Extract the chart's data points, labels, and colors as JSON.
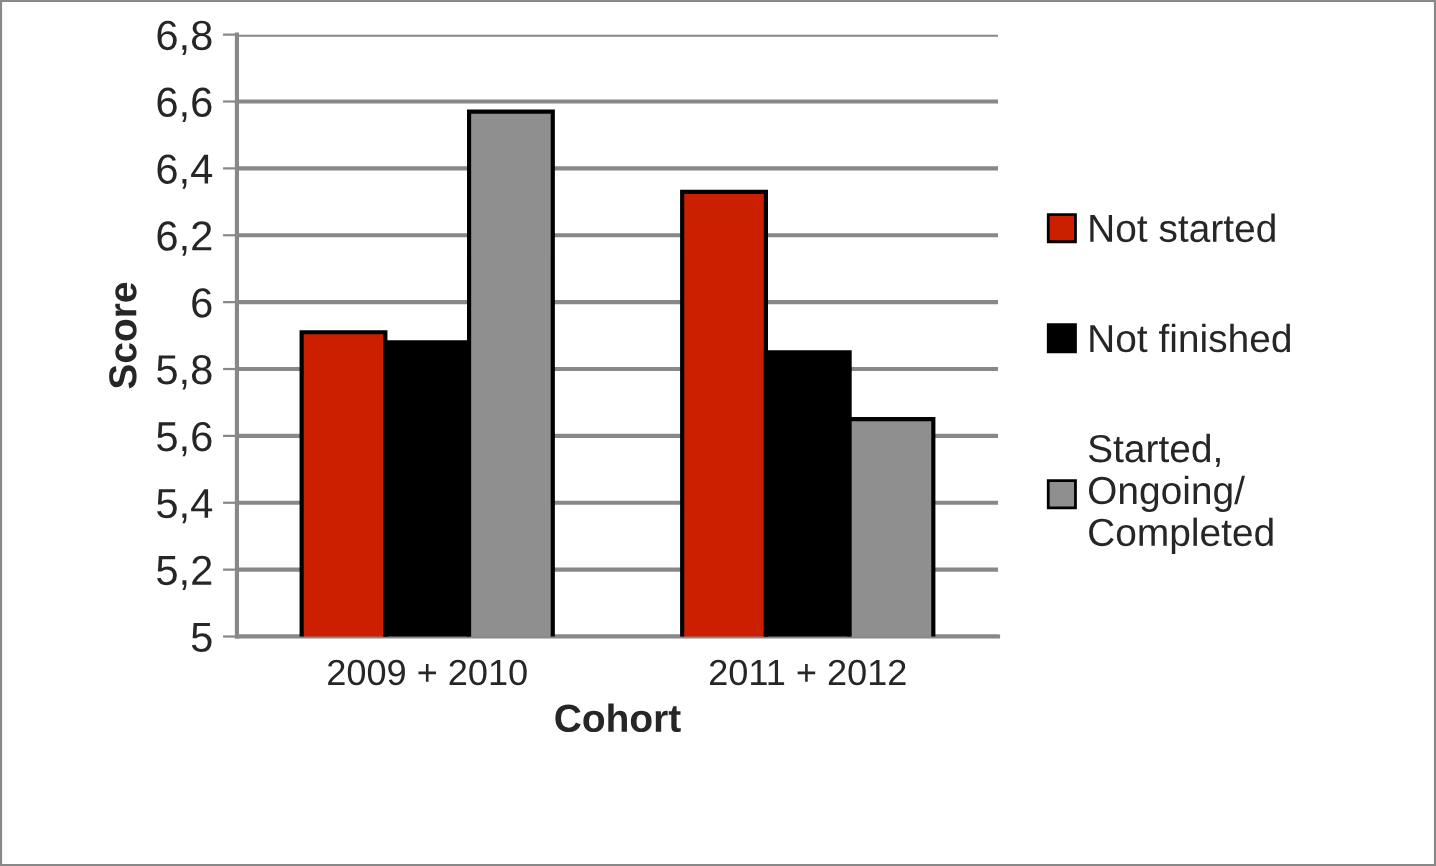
{
  "chart_data": {
    "type": "bar",
    "xlabel": "Cohort",
    "ylabel": "Score",
    "categories": [
      "2009 + 2010",
      "2011 + 2012"
    ],
    "series": [
      {
        "name": "Not started",
        "color": "#cc1f00",
        "values": [
          5.91,
          6.33
        ]
      },
      {
        "name": "Not finished",
        "color": "#000000",
        "values": [
          5.88,
          5.85
        ]
      },
      {
        "name": "Started, Ongoing/ Completed",
        "color": "#8f8f8f",
        "values": [
          6.57,
          5.65
        ]
      }
    ],
    "ylim": [
      5,
      6.8
    ],
    "yticks": [
      5,
      {
        "value": 5.2,
        "label": "5,2"
      },
      {
        "value": 5.4,
        "label": "5,4"
      },
      {
        "value": 5.6,
        "label": "5,6"
      },
      {
        "value": 5.8,
        "label": "5,8"
      },
      6,
      {
        "value": 6.2,
        "label": "6,2"
      },
      {
        "value": 6.4,
        "label": "6,4"
      },
      {
        "value": 6.6,
        "label": "6,6"
      },
      {
        "value": 6.8,
        "label": "6,8"
      }
    ],
    "grid": "y",
    "legend": "right"
  }
}
